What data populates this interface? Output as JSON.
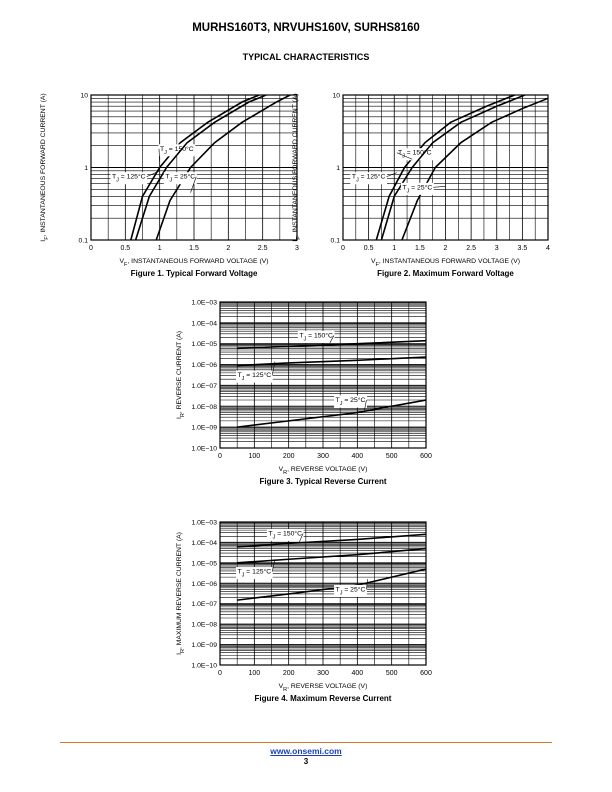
{
  "header": {
    "document_title": "MURHS160T3, NRVUHS160V, SURHS8160",
    "section_title": "TYPICAL CHARACTERISTICS"
  },
  "footer": {
    "link": "www.onsemi.com",
    "page_number": "3"
  },
  "colors": {
    "footer_rule": "#d07a28",
    "link": "#1a3fb8",
    "ink": "#000000"
  },
  "chart_data": [
    {
      "id": "fig1",
      "type": "line",
      "caption": "Figure 1. Typical Forward Voltage",
      "xlabel": "V_F, INSTANTANEOUS FORWARD VOLTAGE (V)",
      "ylabel": "I_F, INSTANTANEOUS FORWARD CURRENT (A)",
      "xlim": [
        0,
        3
      ],
      "ylim": [
        0.1,
        10
      ],
      "ylog": true,
      "xticks": [
        "0",
        "0.5",
        "1",
        "1.5",
        "2",
        "2.5",
        "3"
      ],
      "yticks": [
        "0.1",
        "1",
        "10"
      ],
      "grid": true,
      "series": [
        {
          "name": "T_J = 150°C",
          "x": [
            0.58,
            0.75,
            1.0,
            1.3,
            1.7,
            2.2,
            2.45
          ],
          "y": [
            0.1,
            0.4,
            1.0,
            2.2,
            4.2,
            8.0,
            10
          ]
        },
        {
          "name": "T_J = 125°C",
          "x": [
            0.65,
            0.85,
            1.1,
            1.4,
            1.8,
            2.3,
            2.55
          ],
          "y": [
            0.1,
            0.4,
            1.0,
            2.2,
            4.2,
            8.0,
            10
          ]
        },
        {
          "name": "T_J = 25°C",
          "x": [
            0.95,
            1.15,
            1.45,
            1.8,
            2.2,
            2.7,
            2.9
          ],
          "y": [
            0.1,
            0.35,
            1.0,
            2.2,
            4.2,
            8.0,
            10
          ]
        }
      ]
    },
    {
      "id": "fig2",
      "type": "line",
      "caption": "Figure 2. Maximum Forward Voltage",
      "xlabel": "V_F, INSTANTANEOUS FORWARD VOLTAGE (V)",
      "ylabel": "I_F, INSTANTANEOUS FORWARD CURRENT (A)",
      "xlim": [
        0,
        4
      ],
      "ylim": [
        0.1,
        10
      ],
      "ylog": true,
      "xticks": [
        "0",
        "0.5",
        "1",
        "1.5",
        "2",
        "2.5",
        "3",
        "3.5",
        "4"
      ],
      "yticks": [
        "0.1",
        "1",
        "10"
      ],
      "grid": true,
      "series": [
        {
          "name": "T_J = 150°C",
          "x": [
            0.65,
            0.9,
            1.2,
            1.6,
            2.1,
            2.8,
            3.35
          ],
          "y": [
            0.1,
            0.4,
            1.0,
            2.2,
            4.2,
            7.0,
            10
          ]
        },
        {
          "name": "T_J = 125°C",
          "x": [
            0.75,
            1.0,
            1.35,
            1.75,
            2.3,
            3.0,
            3.55
          ],
          "y": [
            0.1,
            0.4,
            1.0,
            2.2,
            4.2,
            7.0,
            10
          ]
        },
        {
          "name": "T_J = 25°C",
          "x": [
            1.15,
            1.45,
            1.8,
            2.3,
            2.9,
            3.5,
            4.0
          ],
          "y": [
            0.1,
            0.35,
            1.0,
            2.2,
            4.2,
            6.5,
            9.0
          ]
        }
      ]
    },
    {
      "id": "fig3",
      "type": "line",
      "caption": "Figure 3. Typical Reverse Current",
      "xlabel": "V_R, REVERSE VOLTAGE (V)",
      "ylabel": "I_R, REVERSE CURRENT (A)",
      "xlim": [
        0,
        600
      ],
      "ylim": [
        1e-10,
        0.001
      ],
      "ylog": true,
      "xticks": [
        "0",
        "100",
        "200",
        "300",
        "400",
        "500",
        "600"
      ],
      "yticks": [
        "1.0E−10",
        "1.0E−09",
        "1.0E−08",
        "1.0E−07",
        "1.0E−06",
        "1.0E−05",
        "1.0E−04",
        "1.0E−03"
      ],
      "grid": true,
      "series": [
        {
          "name": "T_J = 150°C",
          "x": [
            50,
            200,
            400,
            600
          ],
          "y": [
            6e-06,
            7.5e-06,
            1e-05,
            1.4e-05
          ]
        },
        {
          "name": "T_J = 125°C",
          "x": [
            50,
            200,
            400,
            600
          ],
          "y": [
            9e-07,
            1.2e-06,
            1.6e-06,
            2.3e-06
          ]
        },
        {
          "name": "T_J = 25°C",
          "x": [
            50,
            200,
            400,
            600
          ],
          "y": [
            1e-09,
            2e-09,
            5e-09,
            2e-08
          ]
        }
      ]
    },
    {
      "id": "fig4",
      "type": "line",
      "caption": "Figure 4. Maximum Reverse Current",
      "xlabel": "V_R, REVERSE VOLTAGE (V)",
      "ylabel": "I_R, MAXIMUM REVERSE CURRENT (A)",
      "xlim": [
        0,
        600
      ],
      "ylim": [
        1e-10,
        0.001
      ],
      "ylog": true,
      "xticks": [
        "0",
        "100",
        "200",
        "300",
        "400",
        "500",
        "600"
      ],
      "yticks": [
        "1.0E−10",
        "1.0E−09",
        "1.0E−08",
        "1.0E−07",
        "1.0E−06",
        "1.0E−05",
        "1.0E−04",
        "1.0E−03"
      ],
      "grid": true,
      "series": [
        {
          "name": "T_J = 150°C",
          "x": [
            50,
            200,
            400,
            600
          ],
          "y": [
            6e-05,
            9e-05,
            0.00014,
            0.00025
          ]
        },
        {
          "name": "T_J = 125°C",
          "x": [
            50,
            200,
            400,
            600
          ],
          "y": [
            1e-05,
            1.5e-05,
            2.5e-05,
            5e-05
          ]
        },
        {
          "name": "T_J = 25°C",
          "x": [
            50,
            200,
            400,
            600
          ],
          "y": [
            1.5e-07,
            3e-07,
            8e-07,
            5e-06
          ]
        }
      ]
    }
  ]
}
